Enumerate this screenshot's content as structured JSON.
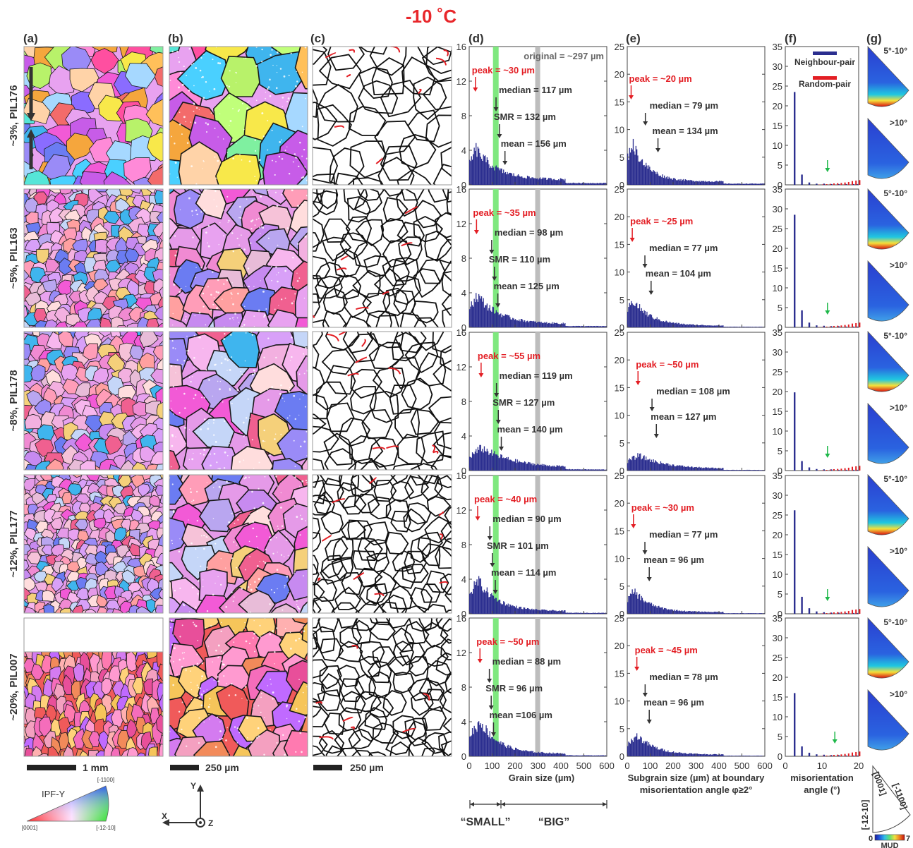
{
  "title": "-10 ˚C",
  "panel_letters": [
    "(a)",
    "(b)",
    "(c)",
    "(d)",
    "(e)",
    "(f)",
    "(g)"
  ],
  "row_labels": [
    "~3%, PIL176",
    "~5%, PIL163",
    "~8%, PIL178",
    "~12%, PIL177",
    "~20%, PIL007"
  ],
  "scale_bars": {
    "a": "1 mm",
    "b": "250 µm",
    "c": "250 µm"
  },
  "colors": {
    "title_red": "#e8262a",
    "bar_blue": "#2b2e8f",
    "peak_red": "#e31e24",
    "green_band": "#7fe87f",
    "gray_band": "#bdbdbd",
    "boundary_red": "#e31e24"
  },
  "ipf_key": {
    "label": "IPF-Y",
    "top": "[-1100]",
    "left": "[0001]",
    "right": "[-12-10]"
  },
  "axes_glyph": {
    "y": "Y",
    "x": "X",
    "z": "Z"
  },
  "original_note": "original = ~297 µm",
  "chart_data": [
    {
      "type": "bar",
      "panel": "d",
      "xlabel": "Grain size (µm)",
      "xlim": [
        0,
        600
      ],
      "ylim": [
        0,
        16
      ],
      "xticks": [
        "0",
        "100",
        "200",
        "300",
        "400",
        "500",
        "600"
      ],
      "yticks": [
        "0",
        "4",
        "8",
        "12",
        "16"
      ],
      "bands": {
        "small_big_split": 116,
        "original": 297
      },
      "rows": [
        {
          "peak": "peak = ~30 µm",
          "median": "median = 117 µm",
          "smr": "SMR = 132 µm",
          "mean": "mean = 156 µm",
          "peak_x": 30,
          "median_x": 117,
          "smr_x": 132,
          "mean_x": 156,
          "profile_peak": 4.2,
          "profile_decay": 90,
          "profile_floor": 0.6
        },
        {
          "peak": "peak = ~35 µm",
          "median": "median = 98 µm",
          "smr": "SMR = 110 µm",
          "mean": "mean = 125 µm",
          "peak_x": 35,
          "median_x": 98,
          "smr_x": 110,
          "mean_x": 125,
          "profile_peak": 3.8,
          "profile_decay": 95,
          "profile_floor": 0.4
        },
        {
          "peak": "peak = ~55 µm",
          "median": "median = 119 µm",
          "smr": "SMR = 127 µm",
          "mean": "mean = 140 µm",
          "peak_x": 55,
          "median_x": 119,
          "smr_x": 127,
          "mean_x": 140,
          "profile_peak": 2.7,
          "profile_decay": 140,
          "profile_floor": 0.3
        },
        {
          "peak": "peak = ~40 µm",
          "median": "median = 90 µm",
          "smr": "SMR = 101 µm",
          "mean": "mean = 114 µm",
          "peak_x": 40,
          "median_x": 90,
          "smr_x": 101,
          "mean_x": 114,
          "profile_peak": 3.9,
          "profile_decay": 85,
          "profile_floor": 0.3
        },
        {
          "peak": "peak = ~50 µm",
          "median": "median = 88 µm",
          "smr": "SMR = 96 µm",
          "mean": "mean =106 µm",
          "peak_x": 50,
          "median_x": 88,
          "smr_x": 96,
          "mean_x": 106,
          "profile_peak": 4.1,
          "profile_decay": 80,
          "profile_floor": 0.3
        }
      ],
      "categories_below": [
        "“SMALL”",
        "“BIG”"
      ]
    },
    {
      "type": "bar",
      "panel": "e",
      "xlabel": "Subgrain size (µm) at boundary misorientation angle φ≥2°",
      "xlim": [
        0,
        600
      ],
      "ylim": [
        0,
        25
      ],
      "xticks": [
        "0",
        "100",
        "200",
        "300",
        "400",
        "500",
        "600"
      ],
      "yticks": [
        "0",
        "5",
        "10",
        "15",
        "20",
        "25"
      ],
      "rows": [
        {
          "peak": "peak = ~20 µm",
          "median": "median = 79 µm",
          "mean": "mean = 134 µm",
          "peak_x": 20,
          "median_x": 79,
          "mean_x": 134,
          "profile_peak": 7.8,
          "profile_decay": 70,
          "profile_floor": 0.6
        },
        {
          "peak": "peak = ~25 µm",
          "median": "median = 77 µm",
          "mean": "mean = 104 µm",
          "peak_x": 25,
          "median_x": 77,
          "mean_x": 104,
          "profile_peak": 5.0,
          "profile_decay": 80,
          "profile_floor": 0.3
        },
        {
          "peak": "peak = ~50 µm",
          "median": "median = 108 µm",
          "mean": "mean = 127 µm",
          "peak_x": 50,
          "median_x": 108,
          "mean_x": 127,
          "profile_peak": 2.8,
          "profile_decay": 120,
          "profile_floor": 0.3
        },
        {
          "peak": "peak = ~30 µm",
          "median": "median = 77 µm",
          "mean": "mean = 96 µm",
          "peak_x": 30,
          "median_x": 77,
          "mean_x": 96,
          "profile_peak": 4.2,
          "profile_decay": 75,
          "profile_floor": 0.3
        },
        {
          "peak": "peak = ~45 µm",
          "median": "median = 78 µm",
          "mean": "mean = 96 µm",
          "peak_x": 45,
          "median_x": 78,
          "mean_x": 96,
          "profile_peak": 3.8,
          "profile_decay": 80,
          "profile_floor": 0.3
        }
      ]
    },
    {
      "type": "bar",
      "panel": "f",
      "xlabel": "misorientation angle (°)",
      "xlim": [
        0,
        20
      ],
      "ylim": [
        0,
        35
      ],
      "xticks": [
        "0",
        "10",
        "20"
      ],
      "yticks": [
        "0",
        "5",
        "10",
        "15",
        "20",
        "25",
        "30",
        "35"
      ],
      "legend": [
        "Neighbour-pair",
        "Random-pair"
      ],
      "legend_placement": "top-right",
      "rows": [
        {
          "neighbour": [
            23.5,
            2.6,
            0.6,
            0.3,
            0.3,
            0.2,
            0.2,
            0.2,
            0.2,
            0.2
          ]
        },
        {
          "neighbour": [
            28.5,
            4.3,
            1.2,
            0.5,
            0.4,
            0.3,
            0.3,
            0.2,
            0.2,
            0.2
          ]
        },
        {
          "neighbour": [
            19.8,
            2.4,
            0.8,
            0.4,
            0.3,
            0.3,
            0.2,
            0.2,
            0.2,
            0.2
          ]
        },
        {
          "neighbour": [
            26.2,
            4.3,
            1.4,
            0.6,
            0.4,
            0.3,
            0.3,
            0.2,
            0.2,
            0.2
          ]
        },
        {
          "neighbour": [
            16.0,
            2.5,
            0.9,
            0.5,
            0.4,
            0.3,
            0.3,
            0.2,
            0.2,
            0.2
          ]
        }
      ],
      "neighbour_x": [
        2.5,
        4.5,
        6.5,
        8.5,
        10.5,
        12.5,
        14.5,
        16.5,
        18.5,
        19.5
      ],
      "random": [
        0.05,
        0.1,
        0.15,
        0.2,
        0.3,
        0.35,
        0.4,
        0.5,
        0.6,
        0.8,
        0.9,
        1.0
      ],
      "random_x": [
        9,
        10,
        11,
        12,
        13,
        14,
        15,
        16,
        17,
        18,
        19,
        20
      ]
    }
  ],
  "pole_figures": {
    "labels": [
      "5°-10°",
      ">10°"
    ],
    "axis_labels": [
      "[0001]",
      "[-12-10]",
      "[-1100]"
    ],
    "colorbar": {
      "label": "MUD",
      "min": "0",
      "max": "7"
    }
  }
}
